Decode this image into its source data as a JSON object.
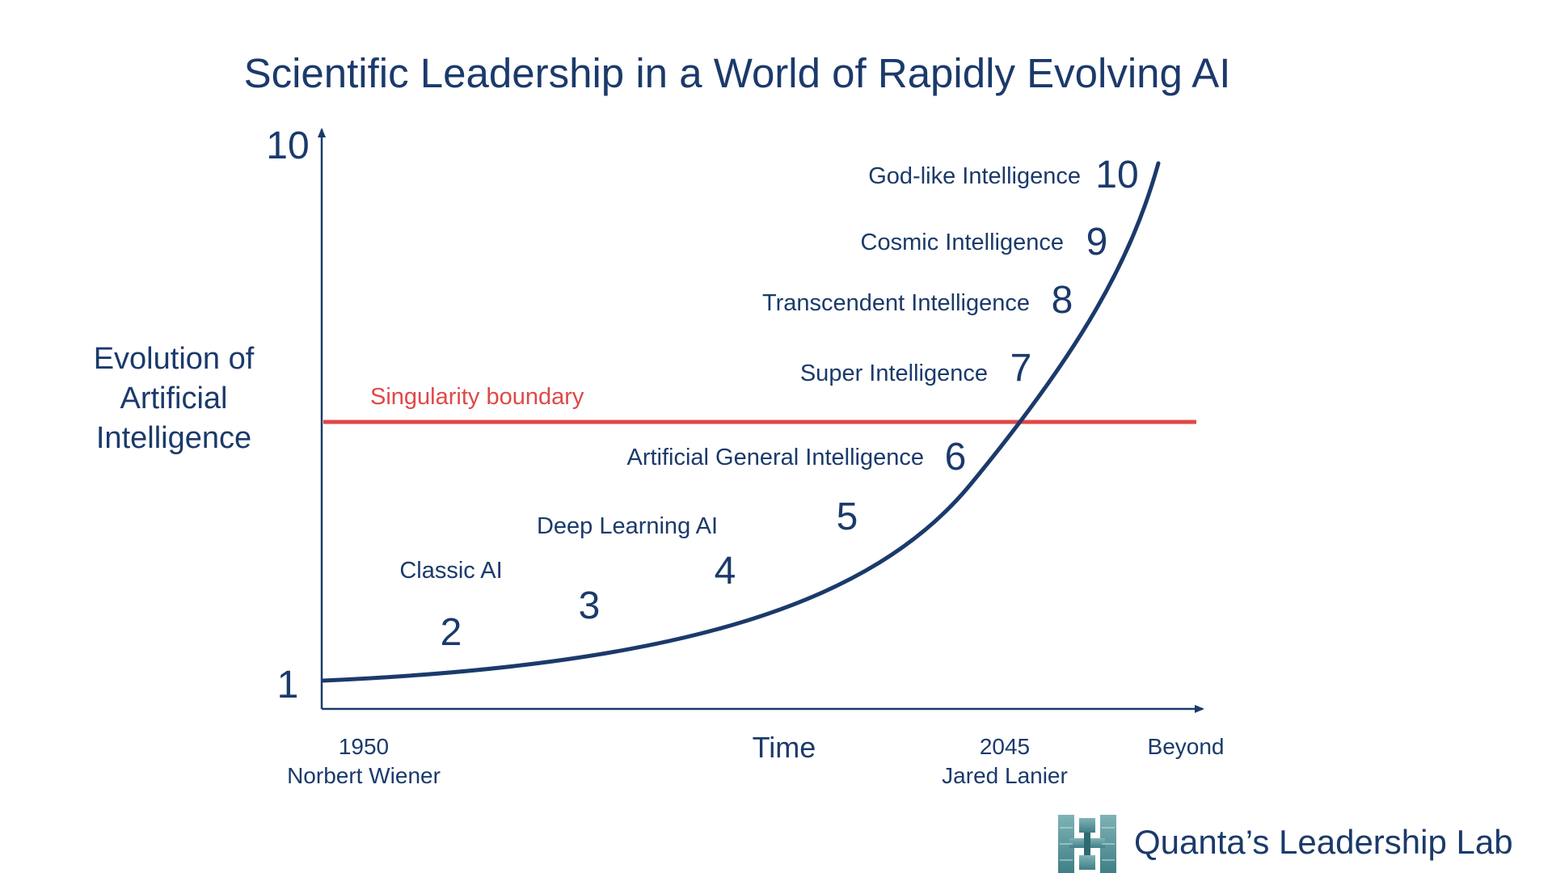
{
  "title": "Scientific Leadership in a World of Rapidly Evolving AI",
  "y_axis": {
    "label_lines": [
      "Evolution of",
      "Artificial",
      "Intelligence"
    ],
    "top_label": "10",
    "bottom_label": "1"
  },
  "x_axis": {
    "label": "Time",
    "ticks": [
      {
        "lines": [
          "1950",
          "Norbert Wiener"
        ]
      },
      {
        "lines": [
          "2045",
          "Jared Lanier"
        ]
      },
      {
        "lines": [
          "Beyond"
        ]
      }
    ]
  },
  "singularity": {
    "label": "Singularity boundary",
    "color": "#e04848"
  },
  "curve": {
    "color": "#1b3a6b"
  },
  "stages": [
    {
      "number": "2",
      "name": "Classic AI"
    },
    {
      "number": "3",
      "name": ""
    },
    {
      "number": "4",
      "name": "Deep Learning AI"
    },
    {
      "number": "5",
      "name": ""
    },
    {
      "number": "6",
      "name": "Artificial General Intelligence"
    },
    {
      "number": "7",
      "name": "Super Intelligence"
    },
    {
      "number": "8",
      "name": "Transcendent Intelligence"
    },
    {
      "number": "9",
      "name": "Cosmic Intelligence"
    },
    {
      "number": "10",
      "name": "God-like Intelligence"
    }
  ],
  "brand": {
    "name": "Quanta’s Leadership Lab",
    "logo_icon": "space-station-icon"
  }
}
